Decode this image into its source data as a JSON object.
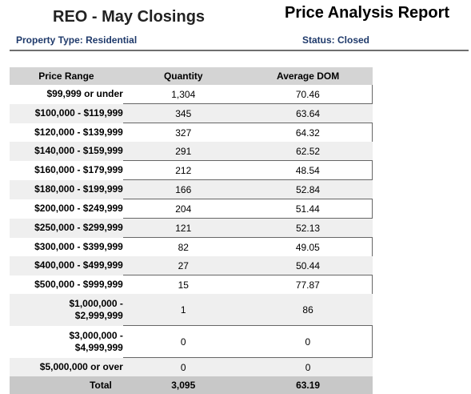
{
  "header": {
    "title": "REO - May Closings",
    "report_title": "Price Analysis Report",
    "property_type": "Property Type: Residential",
    "status": "Status: Closed"
  },
  "table": {
    "columns": [
      "Price Range",
      "Quantity",
      "Average DOM"
    ],
    "rows": [
      {
        "range": "$99,999 or under",
        "quantity": "1,304",
        "dom": "70.46"
      },
      {
        "range": "$100,000 - $119,999",
        "quantity": "345",
        "dom": "63.64"
      },
      {
        "range": "$120,000 - $139,999",
        "quantity": "327",
        "dom": "64.32"
      },
      {
        "range": "$140,000 - $159,999",
        "quantity": "291",
        "dom": "62.52"
      },
      {
        "range": "$160,000 - $179,999",
        "quantity": "212",
        "dom": "48.54"
      },
      {
        "range": "$180,000 - $199,999",
        "quantity": "166",
        "dom": "52.84"
      },
      {
        "range": "$200,000 - $249,999",
        "quantity": "204",
        "dom": "51.44"
      },
      {
        "range": "$250,000 - $299,999",
        "quantity": "121",
        "dom": "52.13"
      },
      {
        "range": "$300,000 - $399,999",
        "quantity": "82",
        "dom": "49.05"
      },
      {
        "range": "$400,000 - $499,999",
        "quantity": "27",
        "dom": "50.44"
      },
      {
        "range": "$500,000 - $999,999",
        "quantity": "15",
        "dom": "77.87"
      },
      {
        "range_line1": "$1,000,000 -",
        "range_line2": "$2,999,999",
        "quantity": "1",
        "dom": "86"
      },
      {
        "range_line1": "$3,000,000 -",
        "range_line2": "$4,999,999",
        "quantity": "0",
        "dom": "0"
      },
      {
        "range": "$5,000,000 or over",
        "quantity": "0",
        "dom": "0"
      }
    ],
    "total": {
      "label": "Total",
      "quantity": "3,095",
      "dom": "63.19"
    }
  }
}
